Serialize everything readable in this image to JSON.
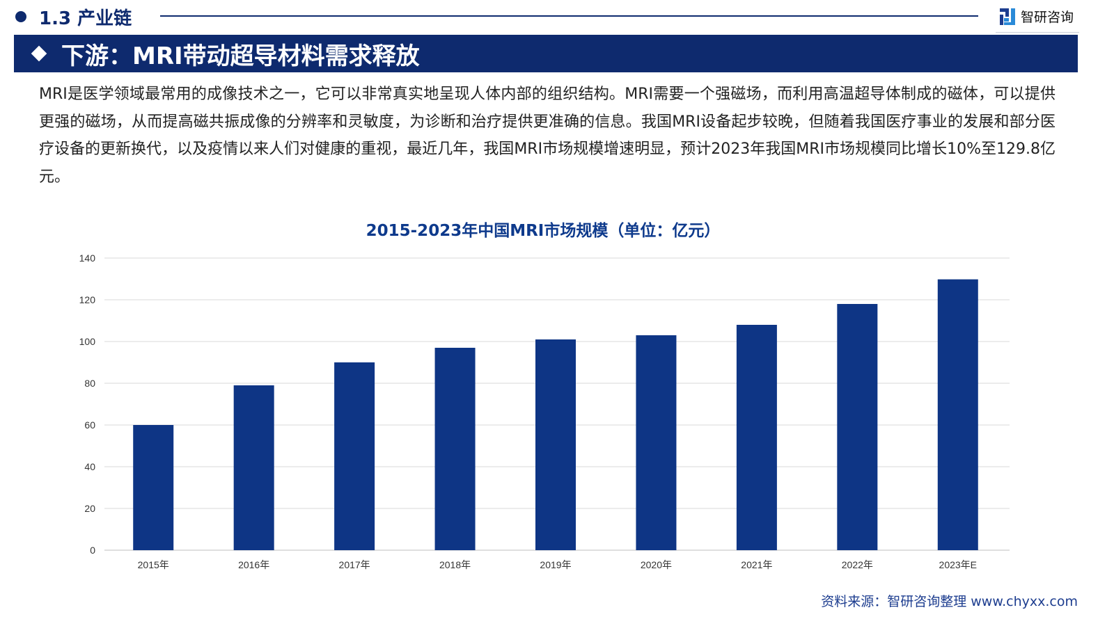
{
  "header": {
    "section": "1.3 产业链",
    "logo_text": "智研咨询"
  },
  "banner": {
    "title": "下游：MRI带动超导材料需求释放"
  },
  "paragraph": "MRI是医学领域最常用的成像技术之一，它可以非常真实地呈现人体内部的组织结构。MRI需要一个强磁场，而利用高温超导体制成的磁体，可以提供更强的磁场，从而提高磁共振成像的分辨率和灵敏度，为诊断和治疗提供更准确的信息。我国MRI设备起步较晚，但随着我国医疗事业的发展和部分医疗设备的更新换代，以及疫情以来人们对健康的重视，最近几年，我国MRI市场规模增速明显，预计2023年我国MRI市场规模同比增长10%至129.8亿元。",
  "source": "资料来源：智研咨询整理  www.chyxx.com",
  "colors": {
    "bar": "#0e3585",
    "navy": "#0e2a6e",
    "grid": "#d9d9d9"
  },
  "chart_data": {
    "type": "bar",
    "title": "2015-2023年中国MRI市场规模（单位：亿元）",
    "categories": [
      "2015年",
      "2016年",
      "2017年",
      "2018年",
      "2019年",
      "2020年",
      "2021年",
      "2022年",
      "2023年E"
    ],
    "values": [
      60,
      79,
      90,
      97,
      101,
      103,
      108,
      118,
      129.8
    ],
    "ylim": [
      0,
      140
    ],
    "yticks": [
      "0",
      "20",
      "40",
      "60",
      "80",
      "100",
      "120",
      "140"
    ],
    "grid": true,
    "xlabel": "",
    "ylabel": ""
  }
}
